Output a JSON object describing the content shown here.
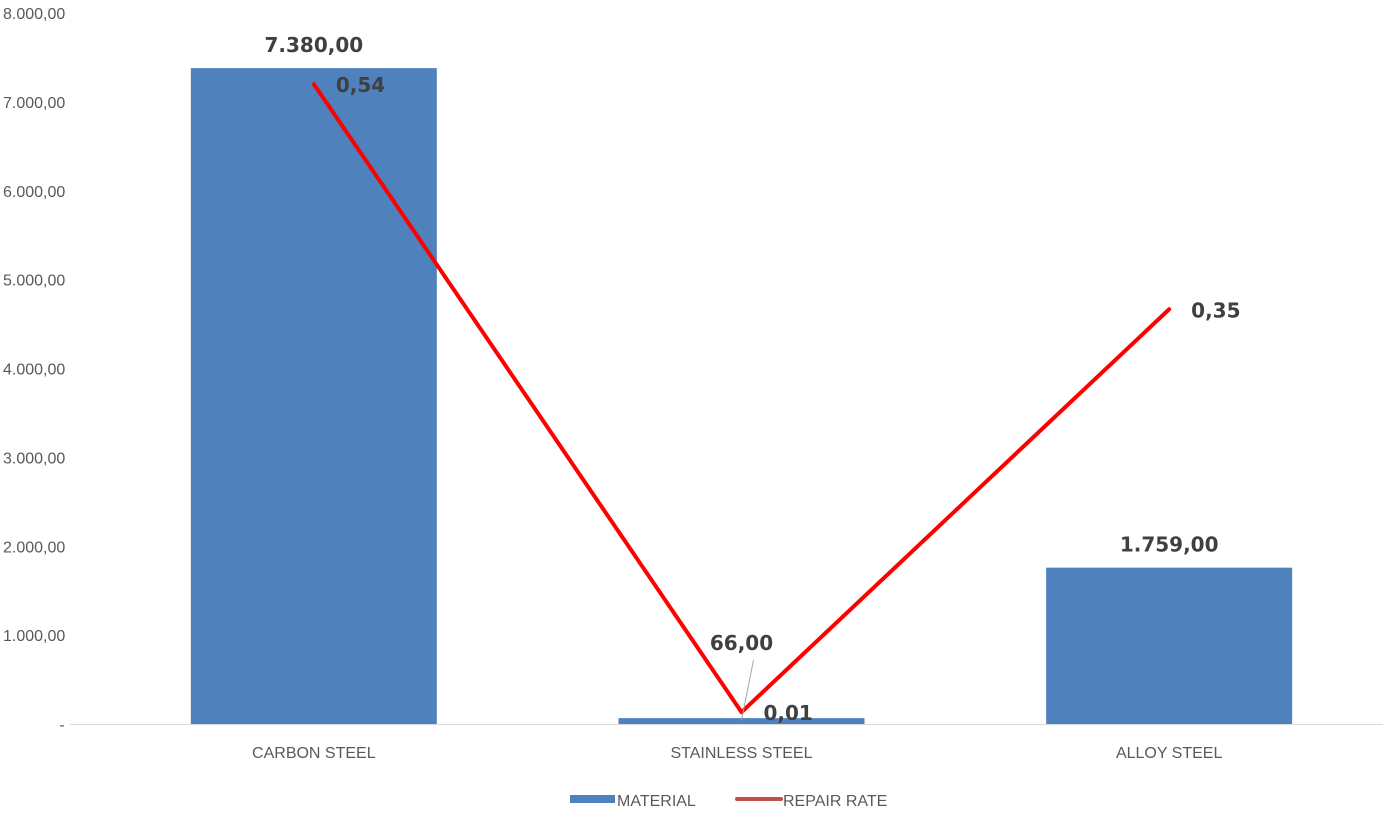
{
  "chart_data": {
    "type": "bar",
    "categories": [
      "CARBON STEEL",
      "STAINLESS STEEL",
      "ALLOY STEEL"
    ],
    "series": [
      {
        "name": "MATERIAL",
        "type": "bar",
        "axis": "primary",
        "values": [
          7380,
          66,
          1759
        ],
        "labels": [
          "7.380,00",
          "66,00",
          "1.759,00"
        ],
        "color": "#4F81BD"
      },
      {
        "name": "REPAIR RATE",
        "type": "line",
        "axis": "secondary",
        "values": [
          0.54,
          0.01,
          0.35
        ],
        "labels": [
          "0,54",
          "0,01",
          "0,35"
        ],
        "color": "#FF0000"
      }
    ],
    "ylim": [
      0,
      8000
    ],
    "y_secondary_lim": [
      0,
      0.6
    ],
    "yticks": [
      "-",
      "1.000,00",
      "2.000,00",
      "3.000,00",
      "4.000,00",
      "5.000,00",
      "6.000,00",
      "7.000,00",
      "8.000,00"
    ],
    "title": "",
    "xlabel": "",
    "ylabel": "",
    "grid": false,
    "legend": "bottom-center"
  }
}
